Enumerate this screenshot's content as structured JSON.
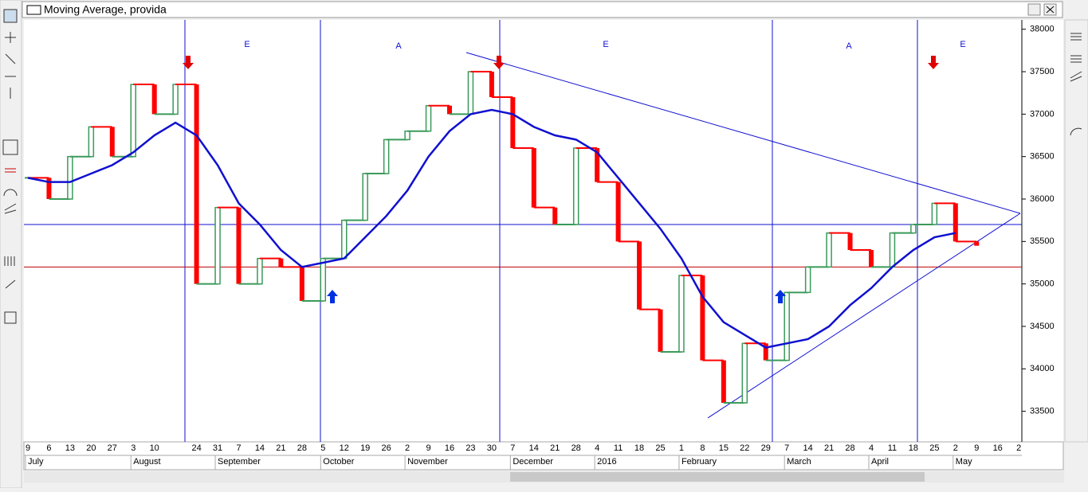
{
  "window_title": "Moving Average, provida",
  "chart_data": {
    "type": "step",
    "categories": [
      "9",
      "6",
      "13",
      "20",
      "27",
      "3",
      "10",
      null,
      "24",
      "31",
      "7",
      "14",
      "21",
      "28",
      "5",
      "12",
      "19",
      "26",
      "2",
      "9",
      "16",
      "23",
      "30",
      "7",
      "14",
      "21",
      "28",
      "4",
      "11",
      "18",
      "25",
      "1",
      "8",
      "15",
      "22",
      "29",
      "7",
      "14",
      "21",
      "28",
      "4",
      "11",
      "18",
      "25",
      "2",
      "9",
      "16",
      "2"
    ],
    "months": [
      "July",
      null,
      null,
      null,
      null,
      "August",
      null,
      null,
      null,
      "September",
      null,
      null,
      null,
      null,
      "October",
      null,
      null,
      null,
      "November",
      null,
      null,
      null,
      null,
      "December",
      null,
      null,
      null,
      "2016",
      null,
      null,
      null,
      "February",
      null,
      null,
      null,
      null,
      "March",
      null,
      null,
      null,
      "April",
      null,
      null,
      null,
      "May",
      null,
      null,
      null
    ],
    "series": [
      {
        "name": "provida",
        "up_color": "#3a9a5a",
        "down_color": "#ff0000",
        "values": [
          36250,
          36000,
          36500,
          36850,
          36500,
          37350,
          37000,
          37350,
          35000,
          35900,
          35000,
          35300,
          35200,
          34800,
          35300,
          35750,
          36300,
          36700,
          36800,
          37100,
          37000,
          37500,
          37200,
          36600,
          35900,
          35700,
          36600,
          36200,
          35500,
          34700,
          34200,
          35100,
          34100,
          33600,
          34300,
          34100,
          34900,
          35200,
          35600,
          35400,
          35200,
          35600,
          35700,
          35950,
          35500,
          35450,
          null,
          null
        ]
      },
      {
        "name": "Moving Average",
        "color": "#1010d0",
        "values": [
          36250,
          36200,
          36200,
          36300,
          36400,
          36550,
          36750,
          36900,
          36750,
          36400,
          35950,
          35700,
          35400,
          35200,
          35250,
          35300,
          35550,
          35800,
          36100,
          36500,
          36800,
          37000,
          37050,
          37000,
          36850,
          36750,
          36700,
          36550,
          36250,
          35950,
          35650,
          35300,
          34850,
          34550,
          34400,
          34250,
          34300,
          34350,
          34500,
          34750,
          34950,
          35200,
          35400,
          35550,
          35600,
          null,
          null,
          null
        ]
      }
    ],
    "hlines": [
      {
        "value": 35700,
        "color": "#1010d0"
      },
      {
        "value": 35200,
        "color": "#c00000"
      }
    ],
    "cycle_labels": [
      "E",
      "A",
      "E",
      "A",
      "E"
    ],
    "ylim": [
      33140,
      38110
    ],
    "yticks": [
      33500,
      34000,
      34500,
      35000,
      35500,
      36000,
      36500,
      37000,
      37500,
      38000
    ]
  }
}
